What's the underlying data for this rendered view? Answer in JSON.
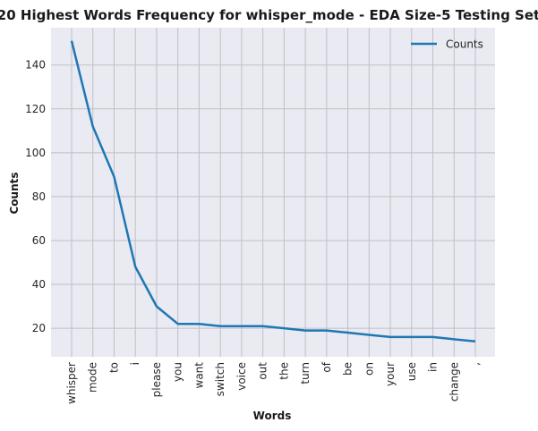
{
  "chart_data": {
    "type": "line",
    "title": "20 Highest Words Frequency for whisper_mode - EDA Size-5 Testing Set",
    "xlabel": "Words",
    "ylabel": "Counts",
    "categories": [
      "whisper",
      "mode",
      "to",
      "i",
      "please",
      "you",
      "want",
      "switch",
      "voice",
      "out",
      "the",
      "turn",
      "of",
      "be",
      "on",
      "your",
      "use",
      "in",
      "change",
      ","
    ],
    "series": [
      {
        "name": "Counts",
        "values": [
          151,
          112,
          89,
          48,
          30,
          22,
          22,
          21,
          21,
          21,
          20,
          19,
          19,
          18,
          17,
          16,
          16,
          16,
          15,
          14
        ]
      }
    ],
    "yticks": [
      20,
      40,
      60,
      80,
      100,
      120,
      140
    ],
    "ylim": [
      7,
      157
    ],
    "grid": true,
    "legend_position": "top-right",
    "colors": {
      "line": "#1f77b4",
      "background": "#eaeaf2",
      "grid": "#bfbfc6"
    }
  }
}
